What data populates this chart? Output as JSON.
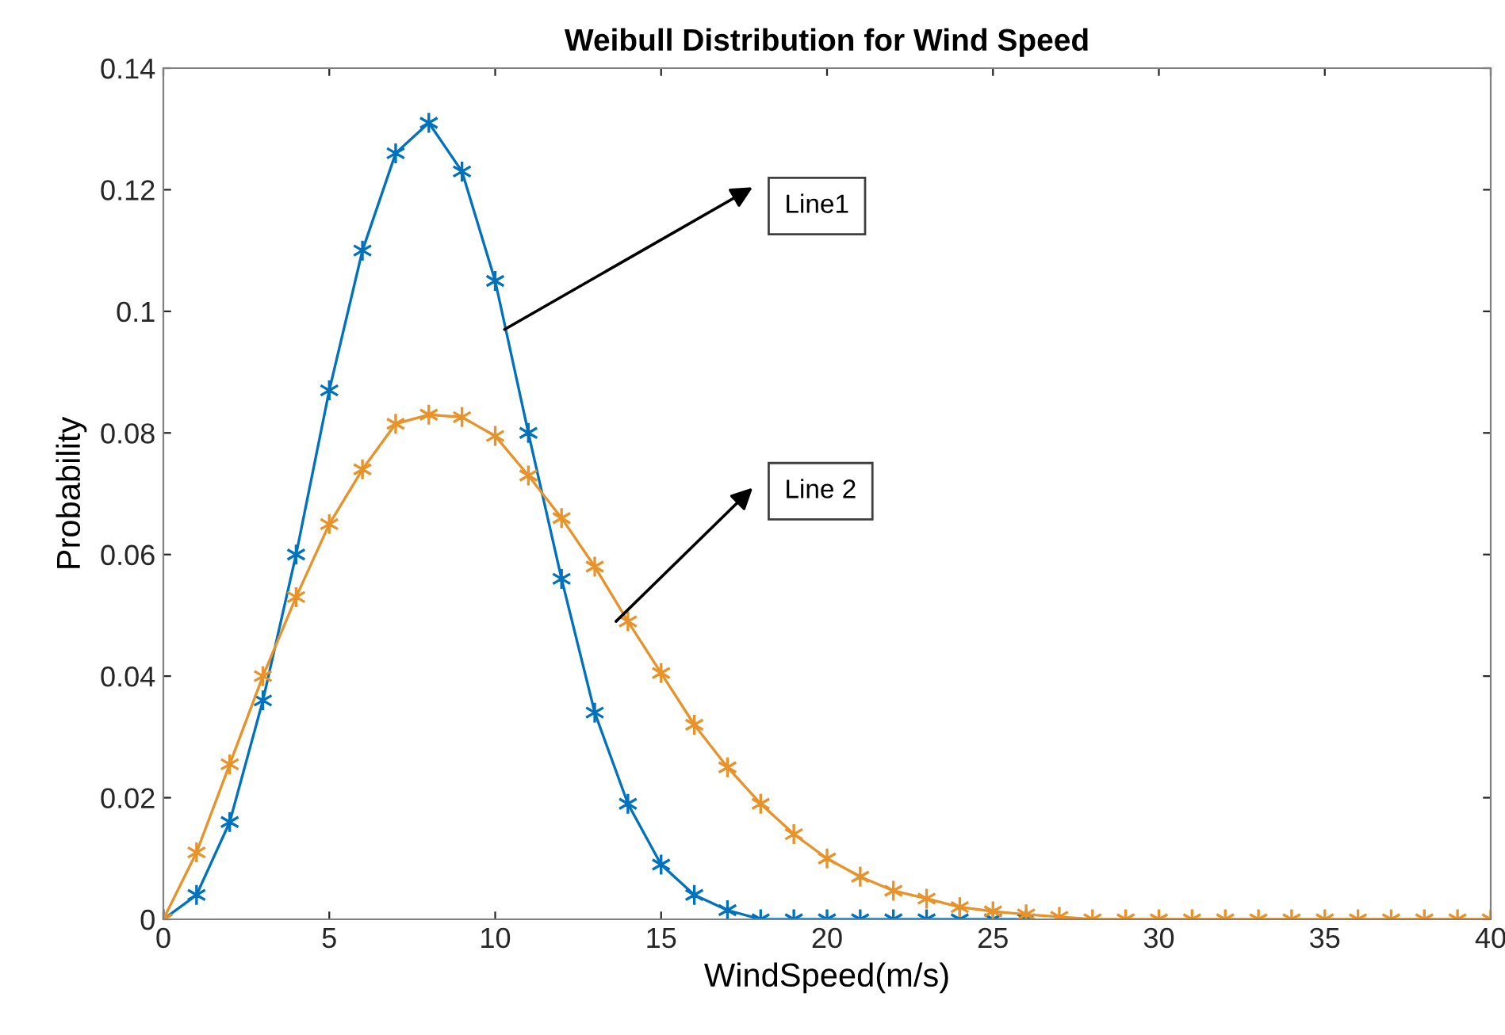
{
  "chart_data": {
    "type": "line",
    "title": "Weibull Distribution for Wind Speed",
    "xlabel": "WindSpeed(m/s)",
    "ylabel": "Probability",
    "x": [
      0,
      1,
      2,
      3,
      4,
      5,
      6,
      7,
      8,
      9,
      10,
      11,
      12,
      13,
      14,
      15,
      16,
      17,
      18,
      19,
      20,
      21,
      22,
      23,
      24,
      25,
      26,
      27,
      28,
      29,
      30,
      31,
      32,
      33,
      34,
      35,
      36,
      37,
      38,
      39,
      40
    ],
    "series": [
      {
        "color": "#0072bd",
        "values": [
          0,
          0.004,
          0.016,
          0.036,
          0.06,
          0.087,
          0.11,
          0.126,
          0.131,
          0.123,
          0.105,
          0.08,
          0.056,
          0.034,
          0.019,
          0.009,
          0.004,
          0.0015,
          0,
          0,
          0,
          0,
          0,
          0,
          0,
          0,
          0,
          null,
          null,
          null,
          null,
          null,
          null,
          null,
          null,
          null,
          null,
          null,
          null,
          null,
          null
        ]
      },
      {
        "color": "#e8922a",
        "values": [
          0,
          0.011,
          0.0255,
          0.04,
          0.053,
          0.065,
          0.074,
          0.0815,
          0.083,
          0.0826,
          0.0795,
          0.073,
          0.066,
          0.058,
          0.049,
          0.0405,
          0.032,
          0.025,
          0.019,
          0.014,
          0.01,
          0.007,
          0.0047,
          0.0034,
          0.002,
          0.0013,
          0.0008,
          0.0004,
          0,
          0,
          0,
          0,
          0,
          0,
          0,
          0,
          0,
          0,
          0,
          0,
          0
        ]
      }
    ],
    "annotations": [
      "Line1",
      "Line 2"
    ],
    "xlim": [
      0,
      40
    ],
    "ylim": [
      0,
      0.14
    ],
    "xticks": [
      0,
      5,
      10,
      15,
      20,
      25,
      30,
      35,
      40
    ],
    "yticks": [
      0,
      0.02,
      0.04,
      0.06,
      0.08,
      0.1,
      0.12,
      0.14
    ],
    "marker": "cross",
    "line_style": "solid",
    "grid": false,
    "legend": false
  }
}
